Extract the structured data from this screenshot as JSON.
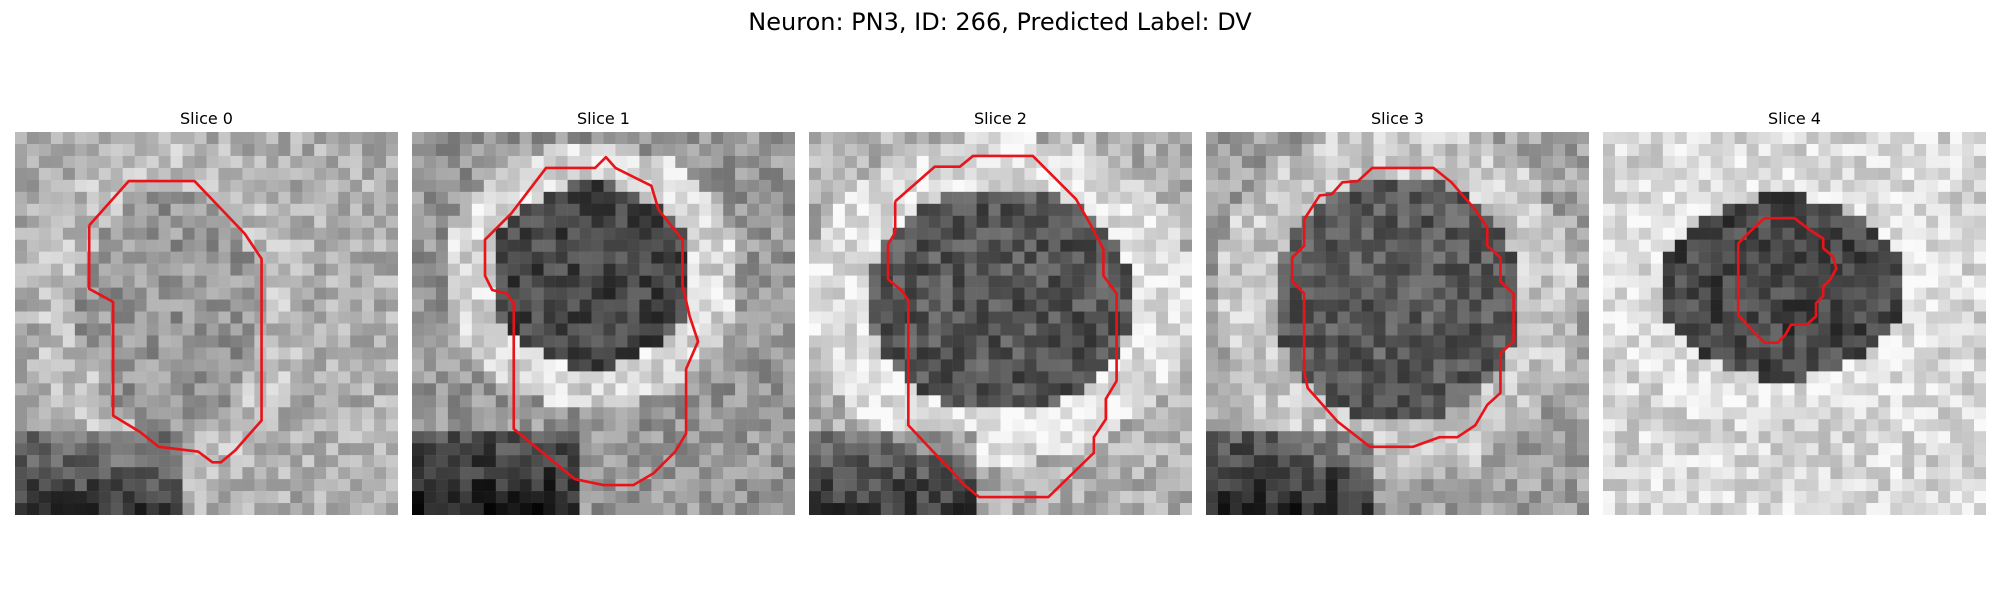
{
  "figure": {
    "title": "Neuron: PN3, ID: 266, Predicted Label: DV"
  },
  "panels": [
    {
      "title": "Slice 0",
      "cell_tone": "light"
    },
    {
      "title": "Slice 1",
      "cell_tone": "dark"
    },
    {
      "title": "Slice 2",
      "cell_tone": "dark"
    },
    {
      "title": "Slice 3",
      "cell_tone": "dark"
    },
    {
      "title": "Slice 4",
      "cell_tone": "dark"
    }
  ],
  "colors": {
    "contour": "#e8141a"
  }
}
